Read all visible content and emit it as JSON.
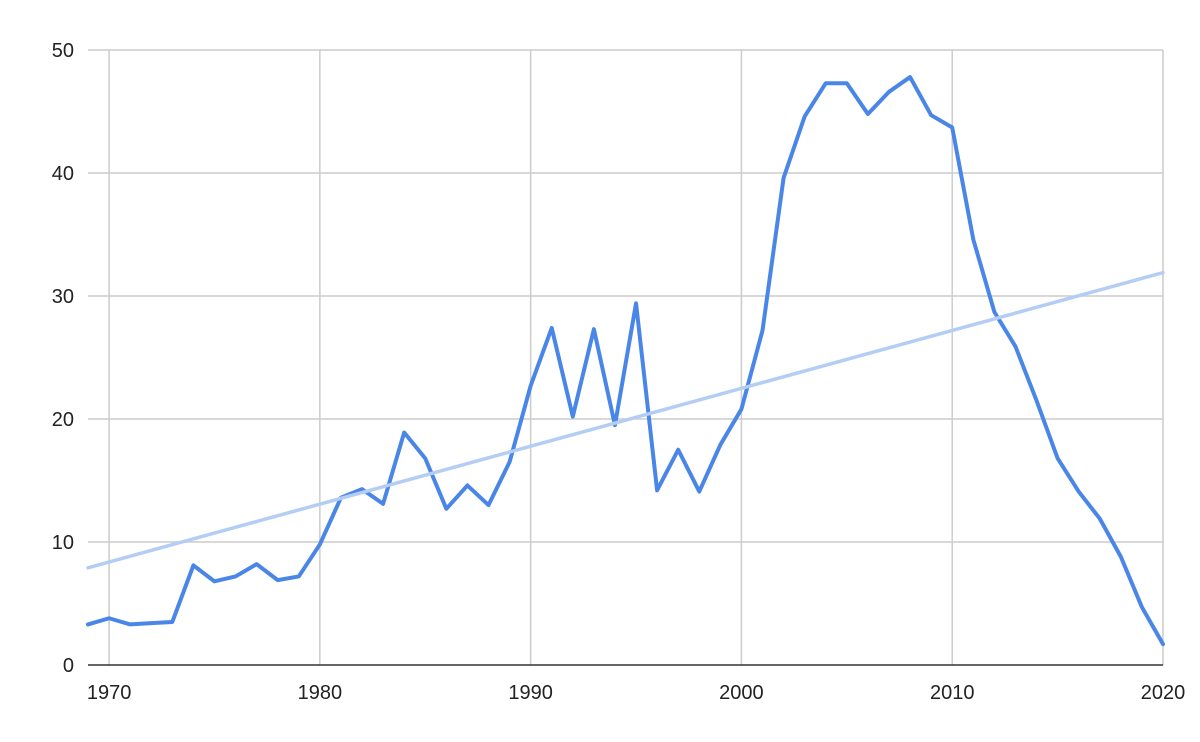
{
  "chart_data": {
    "type": "line",
    "title": "",
    "xlabel": "",
    "ylabel": "",
    "xlim": [
      1969,
      2020
    ],
    "ylim": [
      0,
      50
    ],
    "x_ticks": [
      1970,
      1980,
      1990,
      2000,
      2010,
      2020
    ],
    "y_ticks": [
      0,
      10,
      20,
      30,
      40,
      50
    ],
    "grid": true,
    "legend": "none",
    "series": [
      {
        "color": "#4a86e8",
        "x": [
          1969,
          1970,
          1971,
          1972,
          1973,
          1974,
          1975,
          1976,
          1977,
          1978,
          1979,
          1980,
          1981,
          1982,
          1983,
          1984,
          1985,
          1986,
          1987,
          1988,
          1989,
          1990,
          1991,
          1992,
          1993,
          1994,
          1995,
          1996,
          1997,
          1998,
          1999,
          2000,
          2001,
          2002,
          2003,
          2004,
          2005,
          2006,
          2007,
          2008,
          2009,
          2010,
          2011,
          2012,
          2013,
          2014,
          2015,
          2016,
          2017,
          2018,
          2019,
          2020
        ],
        "values": [
          3.3,
          3.8,
          3.3,
          3.4,
          3.5,
          8.1,
          6.8,
          7.2,
          8.2,
          6.9,
          7.2,
          9.8,
          13.6,
          14.3,
          13.1,
          18.9,
          16.8,
          12.7,
          14.6,
          13.0,
          16.5,
          22.7,
          27.4,
          20.2,
          27.3,
          19.5,
          29.4,
          14.2,
          17.5,
          14.1,
          17.9,
          20.8,
          27.2,
          39.6,
          44.6,
          47.3,
          47.3,
          44.8,
          46.6,
          47.8,
          44.7,
          43.7,
          34.6,
          28.7,
          25.9,
          21.5,
          16.8,
          14.1,
          11.9,
          8.8,
          4.7,
          1.7
        ]
      },
      {
        "color": "#b4cdf5",
        "trendline": true,
        "x": [
          1969,
          2020
        ],
        "values": [
          7.9,
          31.9
        ]
      }
    ]
  }
}
